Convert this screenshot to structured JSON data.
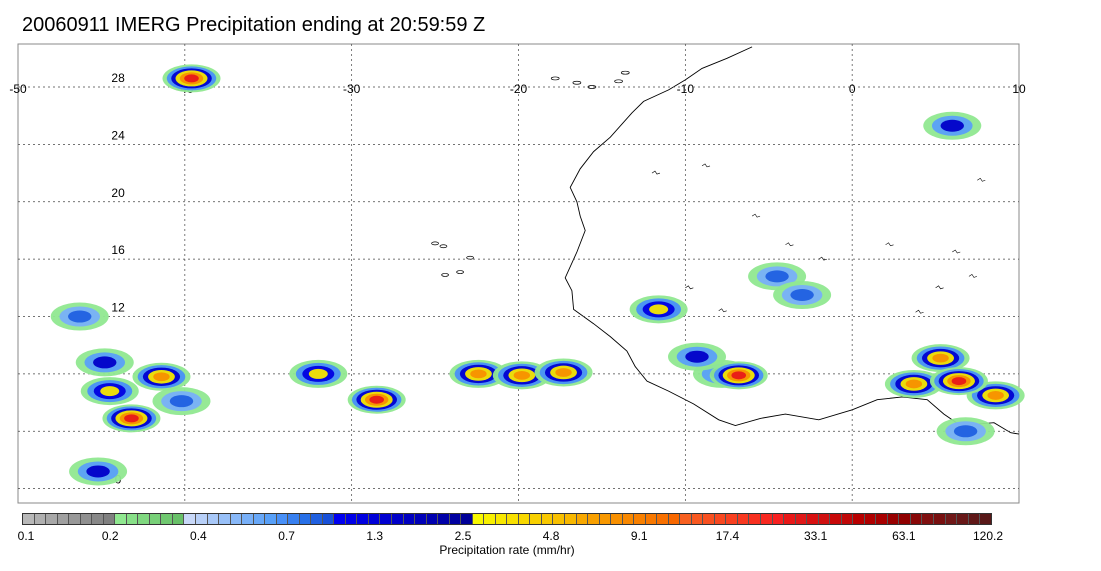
{
  "title": "20060911 IMERG Precipitation ending at 20:59:59 Z",
  "map": {
    "lon_range": [
      -50,
      10
    ],
    "lat_range": [
      -1,
      31
    ],
    "lon_ticks": [
      "-50",
      "-40",
      "-30",
      "-20",
      "-10",
      "0",
      "10"
    ],
    "lon_tick_values": [
      -50,
      -40,
      -30,
      -20,
      -10,
      0,
      10
    ],
    "lat_ticks": [
      "0",
      "4",
      "8",
      "12",
      "16",
      "20",
      "24",
      "28"
    ],
    "lat_tick_values": [
      0,
      4,
      8,
      12,
      16,
      20,
      24,
      28
    ],
    "grid": true,
    "coastline_color": "#000000",
    "precip_cells": [
      {
        "lon": -43.2,
        "lat": 4.9,
        "level": "red"
      },
      {
        "lon": -44.5,
        "lat": 6.8,
        "level": "yellow"
      },
      {
        "lon": -41.4,
        "lat": 7.8,
        "level": "orange"
      },
      {
        "lon": -40.2,
        "lat": 6.1,
        "level": "blue"
      },
      {
        "lon": -44.8,
        "lat": 8.8,
        "level": "dark-blue"
      },
      {
        "lon": -45.2,
        "lat": 1.2,
        "level": "dark-blue"
      },
      {
        "lon": -39.6,
        "lat": 28.6,
        "level": "red"
      },
      {
        "lon": -22.4,
        "lat": 8.0,
        "level": "orange"
      },
      {
        "lon": -19.8,
        "lat": 7.9,
        "level": "orange"
      },
      {
        "lon": -17.3,
        "lat": 8.1,
        "level": "orange"
      },
      {
        "lon": -32.0,
        "lat": 8.0,
        "level": "yellow"
      },
      {
        "lon": -11.6,
        "lat": 12.5,
        "level": "yellow"
      },
      {
        "lon": -7.8,
        "lat": 8.0,
        "level": "dark-blue"
      },
      {
        "lon": -6.8,
        "lat": 7.9,
        "level": "red"
      },
      {
        "lon": -9.3,
        "lat": 9.2,
        "level": "dark-blue"
      },
      {
        "lon": 3.7,
        "lat": 7.3,
        "level": "orange"
      },
      {
        "lon": 5.3,
        "lat": 9.1,
        "level": "orange"
      },
      {
        "lon": 8.6,
        "lat": 6.5,
        "level": "orange"
      },
      {
        "lon": 6.4,
        "lat": 7.5,
        "level": "red"
      },
      {
        "lon": 6.0,
        "lat": 25.3,
        "level": "dark-blue"
      },
      {
        "lon": 6.8,
        "lat": 4.0,
        "level": "blue"
      },
      {
        "lon": -4.5,
        "lat": 14.8,
        "level": "blue"
      },
      {
        "lon": -3.0,
        "lat": 13.5,
        "level": "blue"
      },
      {
        "lon": -46.3,
        "lat": 12.0,
        "level": "blue"
      },
      {
        "lon": -28.5,
        "lat": 6.2,
        "level": "red"
      }
    ]
  },
  "colorbar": {
    "label": "Precipitation rate (mm/hr)",
    "tick_labels": [
      "0.1",
      "0.2",
      "0.4",
      "0.7",
      "1.3",
      "2.5",
      "4.8",
      "9.1",
      "17.4",
      "33.1",
      "63.1",
      "120.2"
    ],
    "colors": [
      "#b8b8b8",
      "#b0b0b0",
      "#a8a8a8",
      "#a0a0a0",
      "#989898",
      "#909090",
      "#888888",
      "#808080",
      "#90e890",
      "#88e088",
      "#80d880",
      "#78d078",
      "#70c870",
      "#68c068",
      "#c8d8f8",
      "#b8d0f8",
      "#a8c8f8",
      "#98c0f8",
      "#88b8f8",
      "#78b0f8",
      "#68a8f8",
      "#58a0f8",
      "#4890f8",
      "#3880f0",
      "#2870e8",
      "#2060e0",
      "#1850d8",
      "#0000f0",
      "#0000e8",
      "#0000e0",
      "#0000d8",
      "#0000d0",
      "#0000c8",
      "#0000c0",
      "#0000b8",
      "#0000b0",
      "#0000a8",
      "#0000a0",
      "#000098",
      "#f8f800",
      "#f8f000",
      "#f8e800",
      "#f8e000",
      "#f8d800",
      "#f8d000",
      "#f8c800",
      "#f8c000",
      "#f8b800",
      "#f8a800",
      "#f8a000",
      "#f89800",
      "#f89000",
      "#f88800",
      "#f88000",
      "#f87800",
      "#f87000",
      "#f86800",
      "#f86020",
      "#f85820",
      "#f85020",
      "#f84820",
      "#f84020",
      "#f83820",
      "#f83020",
      "#f82820",
      "#f82020",
      "#e81818",
      "#e01818",
      "#d81010",
      "#d01010",
      "#c80808",
      "#c00808",
      "#b80000",
      "#b00000",
      "#a80000",
      "#980000",
      "#900000",
      "#880808",
      "#801010",
      "#781010",
      "#701818",
      "#681818",
      "#601818",
      "#581818"
    ]
  }
}
